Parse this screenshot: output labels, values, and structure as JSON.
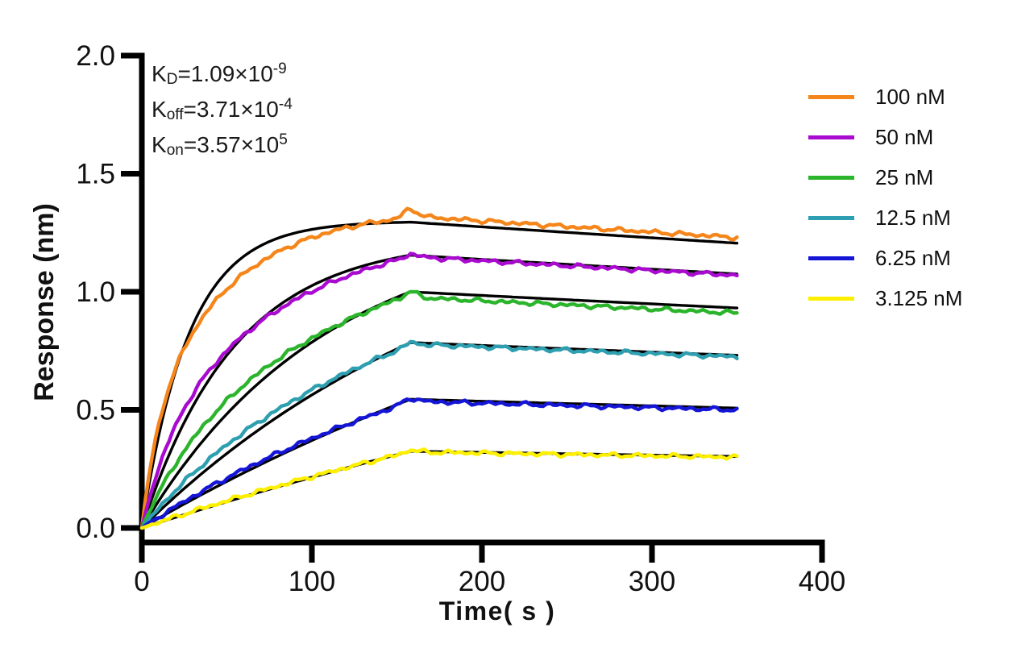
{
  "figure": {
    "background": "#ffffff",
    "kinetics_annotation": {
      "lines": [
        {
          "base": "K",
          "sub": "D",
          "mid": "=1.09×10",
          "exp": "-9"
        },
        {
          "base": "K",
          "sub": "off",
          "mid": "=3.71×10",
          "exp": "-4"
        },
        {
          "base": "K",
          "sub": "on",
          "mid": "=3.57×10",
          "exp": "5"
        }
      ]
    }
  },
  "chart_data": {
    "type": "line",
    "title": "",
    "xlabel": "Time( s )",
    "ylabel": "Response (nm)",
    "xlim": [
      0,
      400
    ],
    "ylim": [
      0.0,
      2.0
    ],
    "x_ticks": [
      0,
      100,
      200,
      300,
      400
    ],
    "y_ticks": [
      0.0,
      0.5,
      1.0,
      1.5,
      2.0
    ],
    "grid": false,
    "legend_position": "right-outside",
    "axis_color": "#000000",
    "fit_color": "#000000",
    "kinetics_values": {
      "KD_M": 1.09e-09,
      "koff_per_s": 0.000371,
      "kon_per_Ms": 357000.0
    },
    "phases": {
      "association_s": [
        0,
        158
      ],
      "dissociation_s": [
        158,
        350
      ]
    },
    "series": [
      {
        "label": "100 nM",
        "conc_nM": 100,
        "color": "#F5861B",
        "kobs": 0.0361,
        "fit_peak_nm": 1.295,
        "fit_end_nm": 1.206,
        "data_peak_nm": 1.35,
        "data_end_nm": 1.23,
        "spike_nm": 0.035,
        "assoc_fast_frac": 0.32,
        "assoc_k_fast": 0.1,
        "assoc_k_slow": 0.02
      },
      {
        "label": "50 nM",
        "conc_nM": 50,
        "color": "#A80ACF",
        "kobs": 0.01822,
        "fit_peak_nm": 1.155,
        "fit_end_nm": 1.076,
        "data_peak_nm": 1.16,
        "data_end_nm": 1.07,
        "spike_nm": 0.012,
        "assoc_fast_frac": 0.28,
        "assoc_k_fast": 0.055,
        "assoc_k_slow": 0.0115
      },
      {
        "label": "25 nM",
        "conc_nM": 25,
        "color": "#2CB52C",
        "kobs": 0.0093,
        "fit_peak_nm": 1.0,
        "fit_end_nm": 0.931,
        "data_peak_nm": 1.0,
        "data_end_nm": 0.91,
        "spike_nm": 0.012,
        "assoc_fast_frac": 0.24,
        "assoc_k_fast": 0.03,
        "assoc_k_slow": 0.0062
      },
      {
        "label": "12.5 nM",
        "conc_nM": 12.5,
        "color": "#2E9FB0",
        "kobs": 0.00483,
        "fit_peak_nm": 0.785,
        "fit_end_nm": 0.731,
        "data_peak_nm": 0.785,
        "data_end_nm": 0.725,
        "spike_nm": 0.012,
        "assoc_fast_frac": 0.2,
        "assoc_k_fast": 0.016,
        "assoc_k_slow": 0.0034
      },
      {
        "label": "6.25 nM",
        "conc_nM": 6.25,
        "color": "#1515D6",
        "kobs": 0.0026,
        "fit_peak_nm": 0.545,
        "fit_end_nm": 0.508,
        "data_peak_nm": 0.55,
        "data_end_nm": 0.5,
        "spike_nm": 0.015,
        "assoc_fast_frac": 0.16,
        "assoc_k_fast": 0.009,
        "assoc_k_slow": 0.0019
      },
      {
        "label": "3.125 nM",
        "conc_nM": 3.125,
        "color": "#FCF000",
        "kobs": 0.00149,
        "fit_peak_nm": 0.325,
        "fit_end_nm": 0.303,
        "data_peak_nm": 0.33,
        "data_end_nm": 0.3,
        "spike_nm": 0.008,
        "assoc_fast_frac": 0.12,
        "assoc_k_fast": 0.005,
        "assoc_k_slow": 0.00115
      }
    ]
  }
}
